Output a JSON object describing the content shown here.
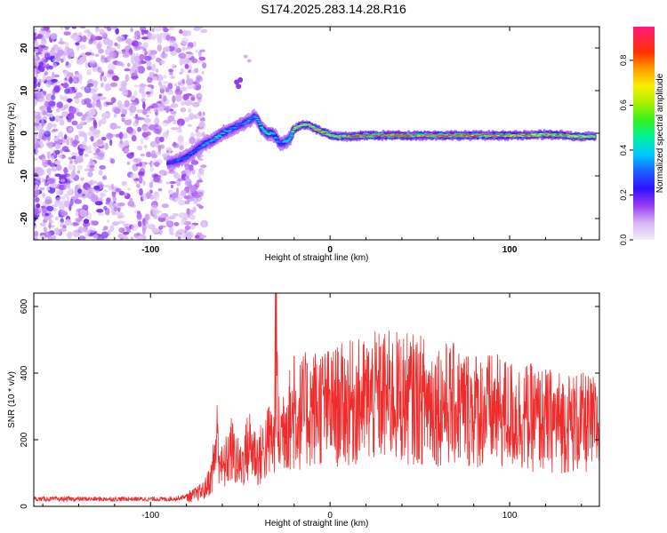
{
  "title": "S174.2025.283.14.28.R16",
  "chart_data": [
    {
      "type": "heatmap",
      "xlabel": "Height of straight line (km)",
      "ylabel": "Frequency (Hz)",
      "xlim": [
        -165,
        150
      ],
      "ylim": [
        -25,
        25
      ],
      "xticks": [
        -100,
        0,
        100
      ],
      "yticks": [
        -20,
        -10,
        0,
        10,
        20
      ],
      "colorbar": {
        "label": "Normalized spectral amplitude",
        "range": [
          0,
          0.95
        ],
        "ticks": [
          0.0,
          0.2,
          0.4,
          0.6,
          0.8
        ]
      },
      "ridge": {
        "x": [
          -90,
          -85,
          -80,
          -75,
          -70,
          -65,
          -60,
          -55,
          -50,
          -45,
          -42,
          -40,
          -38,
          -35,
          -32,
          -30,
          -28,
          -25,
          -22,
          -20,
          -18,
          -15,
          -12,
          -10,
          -8,
          -5,
          -2,
          0,
          5,
          10,
          20,
          30,
          40,
          50,
          60,
          70,
          80,
          90,
          100,
          110,
          120,
          130,
          140,
          148
        ],
        "freq": [
          -7,
          -6.5,
          -5.5,
          -4,
          -2.5,
          -1.5,
          0,
          1,
          2,
          3,
          4,
          3,
          1,
          0,
          0,
          -1,
          -2.5,
          -2,
          -1,
          1,
          1.5,
          2,
          2,
          1.5,
          1,
          0.5,
          0,
          -0.5,
          -0.8,
          -0.8,
          -0.5,
          -0.5,
          -0.5,
          -0.5,
          -0.5,
          -0.5,
          -0.5,
          -0.5,
          -0.5,
          -0.5,
          -0.3,
          -0.5,
          -0.8,
          -0.8
        ],
        "amplitude": [
          0.25,
          0.3,
          0.3,
          0.3,
          0.35,
          0.35,
          0.4,
          0.35,
          0.3,
          0.35,
          0.3,
          0.4,
          0.45,
          0.5,
          0.4,
          0.35,
          0.3,
          0.4,
          0.45,
          0.6,
          0.7,
          0.65,
          0.7,
          0.7,
          0.75,
          0.8,
          0.75,
          0.6,
          0.7,
          0.75,
          0.9,
          0.85,
          0.85,
          0.8,
          0.85,
          0.85,
          0.8,
          0.85,
          0.8,
          0.75,
          0.8,
          0.75,
          0.7,
          0.65
        ]
      }
    },
    {
      "type": "line",
      "xlabel": "Height of straight line (km)",
      "ylabel": "SNR (10 * v/v)",
      "xlim": [
        -165,
        150
      ],
      "ylim": [
        0,
        640
      ],
      "xticks": [
        -100,
        0,
        100
      ],
      "yticks": [
        0,
        200,
        400,
        600
      ],
      "series": [
        {
          "name": "SNR",
          "color": "#ee2c2c",
          "x": [
            -165,
            -150,
            -130,
            -110,
            -100,
            -90,
            -85,
            -80,
            -75,
            -70,
            -66,
            -63,
            -60,
            -55,
            -50,
            -45,
            -40,
            -36,
            -33,
            -31,
            -30,
            -29,
            -27,
            -25,
            -22,
            -20,
            -18,
            -15,
            -10,
            -5,
            0,
            5,
            10,
            15,
            20,
            25,
            30,
            40,
            50,
            60,
            70,
            80,
            90,
            100,
            110,
            120,
            130,
            140,
            150
          ],
          "values": [
            22,
            22,
            22,
            22,
            22,
            22,
            24,
            30,
            40,
            55,
            100,
            230,
            120,
            190,
            130,
            210,
            160,
            200,
            230,
            210,
            650,
            230,
            250,
            300,
            290,
            300,
            300,
            320,
            330,
            340,
            330,
            340,
            345,
            350,
            355,
            365,
            370,
            365,
            360,
            350,
            340,
            330,
            320,
            310,
            300,
            290,
            285,
            280,
            270
          ],
          "peaks": [
            {
              "x": -30.5,
              "y": 640
            },
            {
              "x": -20,
              "y": 450
            },
            {
              "x": -15,
              "y": 400
            },
            {
              "x": 5,
              "y": 380
            },
            {
              "x": 10,
              "y": 425
            },
            {
              "x": 35,
              "y": 400
            }
          ]
        }
      ]
    }
  ]
}
